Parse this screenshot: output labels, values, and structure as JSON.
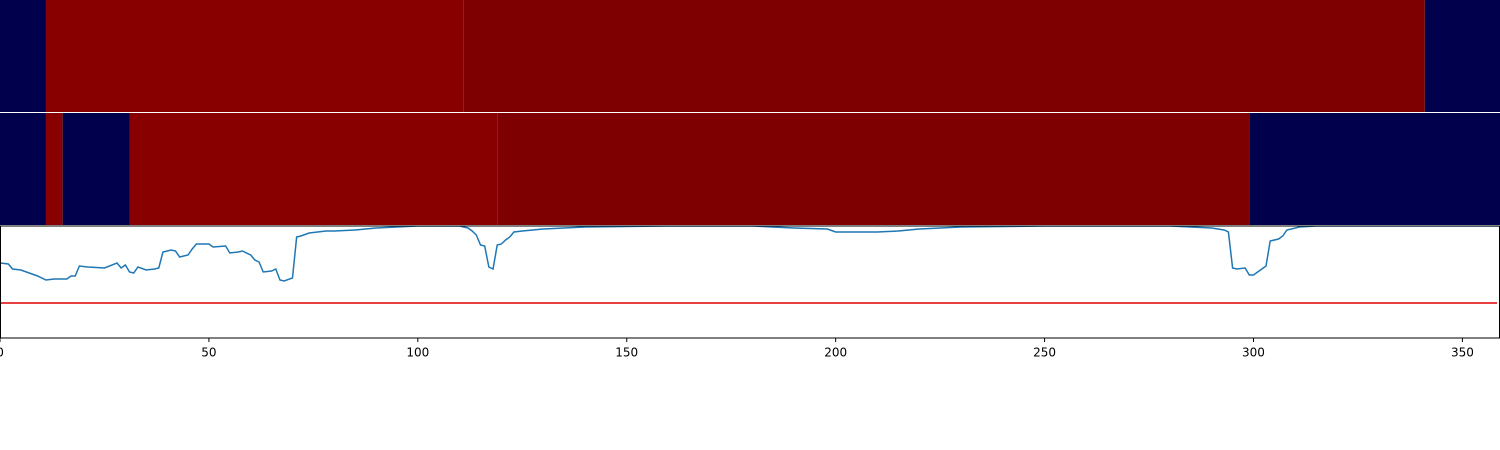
{
  "chart_data": [
    {
      "type": "strip",
      "xlim": [
        0,
        359
      ],
      "segments": [
        {
          "start": 0,
          "end": 11,
          "color": "#00004c"
        },
        {
          "start": 11,
          "end": 111,
          "color": "#880000"
        },
        {
          "start": 111,
          "end": 341,
          "color": "#7f0000"
        },
        {
          "start": 341,
          "end": 359,
          "color": "#00004c"
        }
      ]
    },
    {
      "type": "strip",
      "xlim": [
        0,
        359
      ],
      "segments": [
        {
          "start": 0,
          "end": 11,
          "color": "#00004c"
        },
        {
          "start": 11,
          "end": 15,
          "color": "#880000"
        },
        {
          "start": 15,
          "end": 31,
          "color": "#00004c"
        },
        {
          "start": 31,
          "end": 119,
          "color": "#880000"
        },
        {
          "start": 119,
          "end": 299,
          "color": "#7f0000"
        },
        {
          "start": 299,
          "end": 359,
          "color": "#00004c"
        }
      ]
    },
    {
      "type": "line",
      "xlim": [
        0,
        359
      ],
      "ylim": [
        0,
        112
      ],
      "xticks": [
        0,
        50,
        100,
        150,
        200,
        250,
        300,
        350
      ],
      "x": [
        0,
        2,
        3,
        5,
        7,
        9,
        11,
        13,
        16,
        17,
        18,
        19,
        21,
        25,
        28,
        29,
        30,
        31,
        32,
        33,
        35,
        37,
        38,
        39,
        41,
        42,
        43,
        45,
        46,
        47,
        50,
        51,
        54,
        55,
        57,
        58,
        60,
        61,
        62,
        63,
        65,
        66,
        67,
        68,
        70,
        71,
        72,
        74,
        76,
        78,
        80,
        85,
        90,
        95,
        100,
        105,
        110,
        112,
        113,
        114,
        115,
        116,
        117,
        118,
        119,
        120,
        121,
        122,
        123,
        125,
        130,
        140,
        160,
        180,
        190,
        198,
        200,
        210,
        215,
        220,
        230,
        250,
        280,
        290,
        293,
        294,
        295,
        296,
        298,
        299,
        300,
        302,
        303,
        304,
        306,
        307,
        308,
        311,
        315,
        330,
        359
      ],
      "series": [
        {
          "color": "#1f77b4",
          "values": [
            75,
            74,
            69,
            68,
            65,
            62,
            58,
            59,
            59,
            62,
            62,
            72,
            71,
            70,
            75,
            70,
            73,
            66,
            65,
            71,
            68,
            69,
            70,
            86,
            88,
            87,
            81,
            83,
            89,
            94,
            94,
            91,
            92,
            85,
            86,
            87,
            83,
            78,
            76,
            66,
            67,
            69,
            58,
            57,
            60,
            101,
            102,
            105,
            106,
            107,
            107,
            108,
            110,
            111,
            112,
            112,
            112,
            110,
            107,
            103,
            93,
            92,
            71,
            69,
            93,
            94,
            98,
            101,
            106,
            107,
            109,
            111,
            112,
            112,
            110,
            109,
            106,
            106,
            107,
            109,
            111,
            112,
            112,
            110,
            108,
            106,
            70,
            69,
            70,
            63,
            63,
            69,
            72,
            97,
            99,
            102,
            108,
            111,
            112,
            112,
            112
          ]
        }
      ],
      "hline": {
        "value": 35,
        "color": "#e00000"
      }
    }
  ]
}
